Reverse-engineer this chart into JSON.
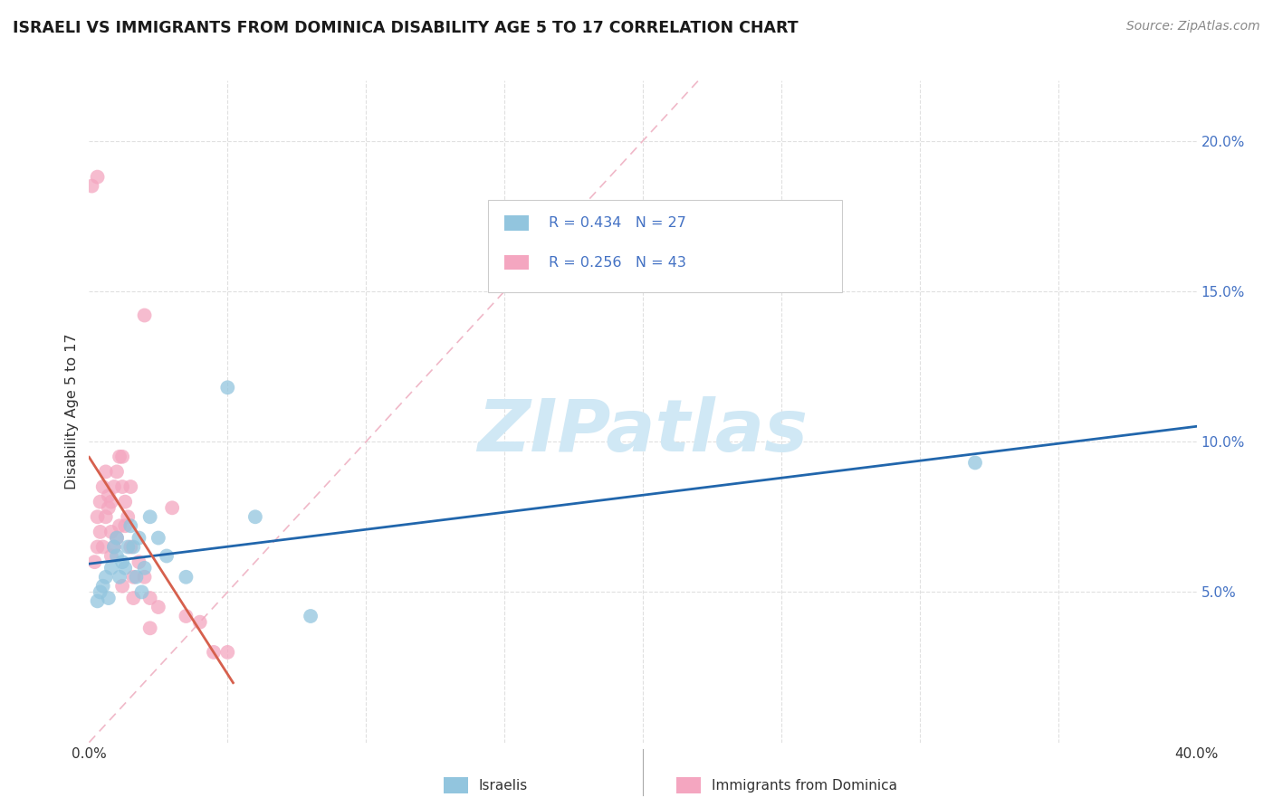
{
  "title": "ISRAELI VS IMMIGRANTS FROM DOMINICA DISABILITY AGE 5 TO 17 CORRELATION CHART",
  "source": "Source: ZipAtlas.com",
  "ylabel": "Disability Age 5 to 17",
  "xlim": [
    0.0,
    0.4
  ],
  "ylim": [
    0.0,
    0.22
  ],
  "blue_color": "#92c5de",
  "pink_color": "#f4a6c0",
  "blue_line_color": "#2166ac",
  "pink_line_color": "#d6604d",
  "diag_line_color": "#f4b8c8",
  "watermark_color": "#d0e8f5",
  "legend_text_color": "#4472c4",
  "israelis_x": [
    0.003,
    0.004,
    0.005,
    0.006,
    0.007,
    0.008,
    0.009,
    0.01,
    0.01,
    0.011,
    0.012,
    0.013,
    0.014,
    0.015,
    0.016,
    0.017,
    0.018,
    0.019,
    0.02,
    0.022,
    0.025,
    0.028,
    0.035,
    0.05,
    0.06,
    0.08,
    0.32
  ],
  "israelis_y": [
    0.047,
    0.05,
    0.052,
    0.055,
    0.048,
    0.058,
    0.065,
    0.062,
    0.068,
    0.055,
    0.06,
    0.058,
    0.065,
    0.072,
    0.065,
    0.055,
    0.068,
    0.05,
    0.058,
    0.075,
    0.068,
    0.062,
    0.055,
    0.118,
    0.075,
    0.042,
    0.093
  ],
  "dominica_x": [
    0.001,
    0.002,
    0.003,
    0.003,
    0.004,
    0.004,
    0.005,
    0.005,
    0.006,
    0.006,
    0.007,
    0.007,
    0.008,
    0.008,
    0.009,
    0.009,
    0.01,
    0.01,
    0.011,
    0.011,
    0.012,
    0.012,
    0.013,
    0.013,
    0.014,
    0.015,
    0.015,
    0.016,
    0.018,
    0.02,
    0.022,
    0.025,
    0.03,
    0.035,
    0.04,
    0.045,
    0.05,
    0.003,
    0.02,
    0.008,
    0.012,
    0.016,
    0.022
  ],
  "dominica_y": [
    0.185,
    0.06,
    0.065,
    0.075,
    0.08,
    0.07,
    0.085,
    0.065,
    0.09,
    0.075,
    0.082,
    0.078,
    0.07,
    0.08,
    0.085,
    0.065,
    0.09,
    0.068,
    0.095,
    0.072,
    0.085,
    0.095,
    0.08,
    0.072,
    0.075,
    0.085,
    0.065,
    0.055,
    0.06,
    0.055,
    0.048,
    0.045,
    0.078,
    0.042,
    0.04,
    0.03,
    0.03,
    0.188,
    0.142,
    0.062,
    0.052,
    0.048,
    0.038
  ]
}
